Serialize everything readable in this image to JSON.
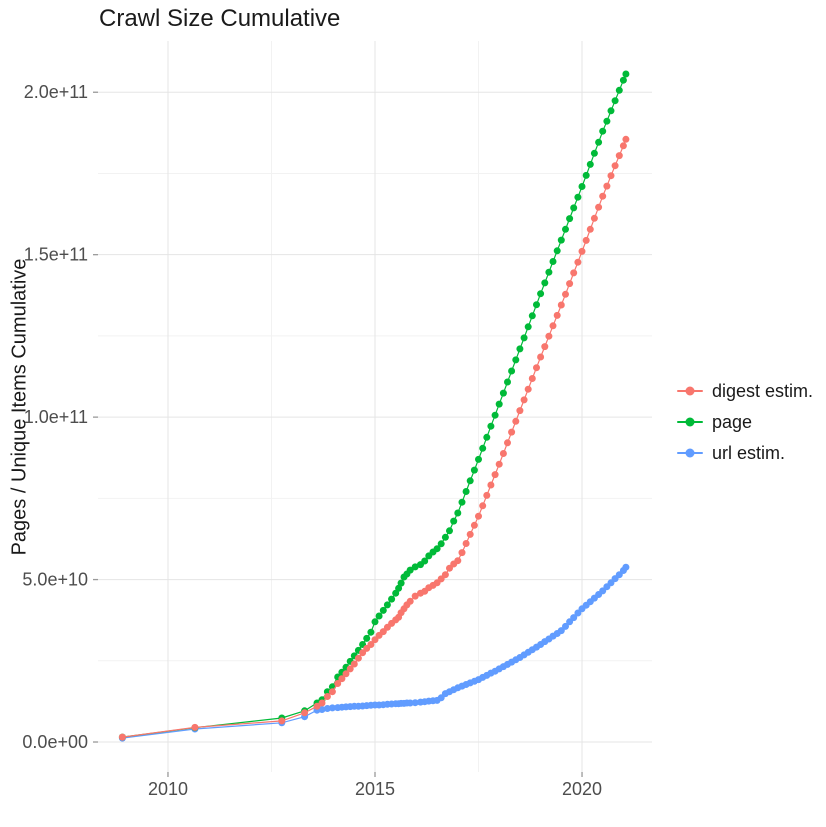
{
  "page": {
    "title": "Crawl Size Cumulative"
  },
  "chart_data": {
    "type": "scatter",
    "title": "Crawl Size Cumulative",
    "xlabel": "",
    "ylabel": "Pages / Unique Items Cumulative",
    "value_unit_note": "point values are in billions (1 = 1e9 items)",
    "x_domain": [
      2008.31,
      2021.69
    ],
    "y_domain_e9": [
      -9.23,
      215.77
    ],
    "x_ticks": [
      {
        "value": 2010,
        "label": "2010"
      },
      {
        "value": 2015,
        "label": "2015"
      },
      {
        "value": 2020,
        "label": "2020"
      }
    ],
    "y_ticks": [
      {
        "value_e9": 0,
        "label": "0.0e+00"
      },
      {
        "value_e9": 50,
        "label": "5.0e+10"
      },
      {
        "value_e9": 100,
        "label": "1.0e+11"
      },
      {
        "value_e9": 150,
        "label": "1.5e+11"
      },
      {
        "value_e9": 200,
        "label": "2.0e+11"
      }
    ],
    "x_minor_gridlines": [
      2012.5,
      2017.5
    ],
    "y_minor_gridlines_e9": [
      25,
      75,
      125,
      175
    ],
    "grid": true,
    "legend_position": "right",
    "colors": {
      "background": "#FFFFFF",
      "major_grid": "#E5E5E5",
      "minor_grid": "#F2F2F2",
      "tick_text": "#4D4D4D",
      "title_text": "#1A1A1A",
      "tick_mark": "#999999"
    },
    "marker": {
      "radius": 3.5,
      "line_width": 1.2
    },
    "series": [
      {
        "name": "digest estim.",
        "color": "#F8766D",
        "points": [
          [
            2008.9,
            1.5
          ],
          [
            2010.65,
            4.5
          ],
          [
            2012.75,
            6.5
          ],
          [
            2013.3,
            9.0
          ],
          [
            2013.6,
            11.0
          ],
          [
            2013.72,
            12.0
          ],
          [
            2013.85,
            14.0
          ],
          [
            2013.97,
            15.5
          ],
          [
            2014.1,
            18.0
          ],
          [
            2014.2,
            19.5
          ],
          [
            2014.3,
            21.0
          ],
          [
            2014.4,
            22.5
          ],
          [
            2014.5,
            24.0
          ],
          [
            2014.6,
            25.8
          ],
          [
            2014.7,
            27.5
          ],
          [
            2014.8,
            28.8
          ],
          [
            2014.9,
            30.0
          ],
          [
            2015.0,
            31.5
          ],
          [
            2015.1,
            32.8
          ],
          [
            2015.2,
            34.0
          ],
          [
            2015.3,
            35.3
          ],
          [
            2015.4,
            36.5
          ],
          [
            2015.5,
            37.6
          ],
          [
            2015.57,
            38.4
          ],
          [
            2015.63,
            39.8
          ],
          [
            2015.7,
            41.0
          ],
          [
            2015.77,
            42.2
          ],
          [
            2015.85,
            43.3
          ],
          [
            2015.97,
            44.9
          ],
          [
            2016.1,
            45.8
          ],
          [
            2016.2,
            46.4
          ],
          [
            2016.3,
            47.5
          ],
          [
            2016.4,
            48.2
          ],
          [
            2016.5,
            49.0
          ],
          [
            2016.6,
            50.2
          ],
          [
            2016.7,
            51.5
          ],
          [
            2016.8,
            53.5
          ],
          [
            2016.9,
            54.8
          ],
          [
            2017.0,
            55.8
          ],
          [
            2017.1,
            58.3
          ],
          [
            2017.2,
            61.1
          ],
          [
            2017.3,
            63.9
          ],
          [
            2017.4,
            66.7
          ],
          [
            2017.5,
            69.5
          ],
          [
            2017.6,
            72.7
          ],
          [
            2017.7,
            75.9
          ],
          [
            2017.8,
            79.1
          ],
          [
            2017.9,
            82.3
          ],
          [
            2018.0,
            85.5
          ],
          [
            2018.1,
            88.8
          ],
          [
            2018.2,
            92.1
          ],
          [
            2018.3,
            95.4
          ],
          [
            2018.4,
            98.7
          ],
          [
            2018.5,
            102.0
          ],
          [
            2018.6,
            105.3
          ],
          [
            2018.7,
            108.6
          ],
          [
            2018.8,
            111.9
          ],
          [
            2018.9,
            115.2
          ],
          [
            2019.0,
            118.5
          ],
          [
            2019.1,
            121.7
          ],
          [
            2019.2,
            124.9
          ],
          [
            2019.3,
            128.1
          ],
          [
            2019.4,
            131.3
          ],
          [
            2019.5,
            134.5
          ],
          [
            2019.6,
            137.8
          ],
          [
            2019.7,
            141.1
          ],
          [
            2019.8,
            144.4
          ],
          [
            2019.9,
            147.7
          ],
          [
            2020.0,
            151.0
          ],
          [
            2020.1,
            154.4
          ],
          [
            2020.2,
            157.8
          ],
          [
            2020.3,
            161.2
          ],
          [
            2020.4,
            164.6
          ],
          [
            2020.5,
            168.0
          ],
          [
            2020.6,
            171.1
          ],
          [
            2020.7,
            174.3
          ],
          [
            2020.8,
            177.4
          ],
          [
            2020.9,
            180.5
          ],
          [
            2021.0,
            183.5
          ],
          [
            2021.06,
            185.5
          ]
        ]
      },
      {
        "name": "page",
        "color": "#00BA38",
        "points": [
          [
            2008.9,
            1.5
          ],
          [
            2010.65,
            4.4
          ],
          [
            2012.75,
            7.4
          ],
          [
            2013.3,
            9.6
          ],
          [
            2013.6,
            12.0
          ],
          [
            2013.72,
            13.0
          ],
          [
            2013.85,
            15.5
          ],
          [
            2013.97,
            17.0
          ],
          [
            2014.1,
            20.0
          ],
          [
            2014.2,
            21.5
          ],
          [
            2014.3,
            23.0
          ],
          [
            2014.4,
            24.8
          ],
          [
            2014.5,
            26.5
          ],
          [
            2014.6,
            28.2
          ],
          [
            2014.7,
            30.0
          ],
          [
            2014.8,
            31.9
          ],
          [
            2014.9,
            33.8
          ],
          [
            2015.0,
            37.0
          ],
          [
            2015.1,
            38.8
          ],
          [
            2015.2,
            40.5
          ],
          [
            2015.3,
            42.2
          ],
          [
            2015.4,
            44.0
          ],
          [
            2015.5,
            45.8
          ],
          [
            2015.57,
            47.3
          ],
          [
            2015.63,
            48.9
          ],
          [
            2015.7,
            50.8
          ],
          [
            2015.77,
            51.7
          ],
          [
            2015.85,
            52.9
          ],
          [
            2015.97,
            53.9
          ],
          [
            2016.1,
            54.6
          ],
          [
            2016.2,
            55.7
          ],
          [
            2016.3,
            57.3
          ],
          [
            2016.4,
            58.5
          ],
          [
            2016.5,
            59.5
          ],
          [
            2016.6,
            61.0
          ],
          [
            2016.7,
            63.0
          ],
          [
            2016.8,
            65.0
          ],
          [
            2016.9,
            68.0
          ],
          [
            2017.0,
            70.5
          ],
          [
            2017.1,
            73.8
          ],
          [
            2017.2,
            77.1
          ],
          [
            2017.3,
            80.4
          ],
          [
            2017.4,
            83.7
          ],
          [
            2017.5,
            87.0
          ],
          [
            2017.6,
            90.4
          ],
          [
            2017.7,
            93.8
          ],
          [
            2017.8,
            97.2
          ],
          [
            2017.9,
            100.6
          ],
          [
            2018.0,
            104.0
          ],
          [
            2018.1,
            107.4
          ],
          [
            2018.2,
            110.8
          ],
          [
            2018.3,
            114.2
          ],
          [
            2018.4,
            117.6
          ],
          [
            2018.5,
            121.0
          ],
          [
            2018.6,
            124.4
          ],
          [
            2018.7,
            127.8
          ],
          [
            2018.8,
            131.2
          ],
          [
            2018.9,
            134.6
          ],
          [
            2019.0,
            138.0
          ],
          [
            2019.1,
            141.3
          ],
          [
            2019.2,
            144.6
          ],
          [
            2019.3,
            147.9
          ],
          [
            2019.4,
            151.2
          ],
          [
            2019.5,
            154.5
          ],
          [
            2019.6,
            157.8
          ],
          [
            2019.7,
            161.1
          ],
          [
            2019.8,
            164.4
          ],
          [
            2019.9,
            167.7
          ],
          [
            2020.0,
            171.0
          ],
          [
            2020.1,
            174.4
          ],
          [
            2020.2,
            177.8
          ],
          [
            2020.3,
            181.2
          ],
          [
            2020.4,
            184.6
          ],
          [
            2020.5,
            188.0
          ],
          [
            2020.6,
            191.1
          ],
          [
            2020.7,
            194.3
          ],
          [
            2020.8,
            197.4
          ],
          [
            2020.9,
            200.6
          ],
          [
            2021.0,
            203.7
          ],
          [
            2021.06,
            205.6
          ]
        ]
      },
      {
        "name": "url estim.",
        "color": "#619CFF",
        "points": [
          [
            2008.9,
            1.2
          ],
          [
            2010.65,
            4.0
          ],
          [
            2012.75,
            5.9
          ],
          [
            2013.3,
            7.8
          ],
          [
            2013.6,
            9.8
          ],
          [
            2013.72,
            10.0
          ],
          [
            2013.85,
            10.3
          ],
          [
            2013.97,
            10.5
          ],
          [
            2014.1,
            10.6
          ],
          [
            2014.2,
            10.7
          ],
          [
            2014.3,
            10.8
          ],
          [
            2014.4,
            10.9
          ],
          [
            2014.5,
            11.0
          ],
          [
            2014.6,
            11.0
          ],
          [
            2014.7,
            11.1
          ],
          [
            2014.8,
            11.2
          ],
          [
            2014.9,
            11.3
          ],
          [
            2015.0,
            11.4
          ],
          [
            2015.1,
            11.4
          ],
          [
            2015.2,
            11.5
          ],
          [
            2015.3,
            11.6
          ],
          [
            2015.4,
            11.7
          ],
          [
            2015.5,
            11.8
          ],
          [
            2015.57,
            11.8
          ],
          [
            2015.63,
            11.9
          ],
          [
            2015.7,
            11.9
          ],
          [
            2015.77,
            12.0
          ],
          [
            2015.85,
            12.0
          ],
          [
            2015.97,
            12.1
          ],
          [
            2016.1,
            12.3
          ],
          [
            2016.2,
            12.4
          ],
          [
            2016.3,
            12.6
          ],
          [
            2016.4,
            12.7
          ],
          [
            2016.5,
            12.8
          ],
          [
            2016.6,
            13.6
          ],
          [
            2016.7,
            14.9
          ],
          [
            2016.8,
            15.5
          ],
          [
            2016.9,
            16.1
          ],
          [
            2017.0,
            16.7
          ],
          [
            2017.1,
            17.2
          ],
          [
            2017.2,
            17.7
          ],
          [
            2017.3,
            18.2
          ],
          [
            2017.4,
            18.7
          ],
          [
            2017.5,
            19.2
          ],
          [
            2017.6,
            19.9
          ],
          [
            2017.7,
            20.5
          ],
          [
            2017.8,
            21.2
          ],
          [
            2017.9,
            21.8
          ],
          [
            2018.0,
            22.5
          ],
          [
            2018.1,
            23.2
          ],
          [
            2018.2,
            23.9
          ],
          [
            2018.3,
            24.6
          ],
          [
            2018.4,
            25.3
          ],
          [
            2018.5,
            26.0
          ],
          [
            2018.6,
            26.8
          ],
          [
            2018.7,
            27.6
          ],
          [
            2018.8,
            28.4
          ],
          [
            2018.9,
            29.2
          ],
          [
            2019.0,
            30.0
          ],
          [
            2019.1,
            30.9
          ],
          [
            2019.2,
            31.7
          ],
          [
            2019.3,
            32.6
          ],
          [
            2019.4,
            33.4
          ],
          [
            2019.5,
            34.3
          ],
          [
            2019.6,
            35.6
          ],
          [
            2019.7,
            37.0
          ],
          [
            2019.8,
            38.3
          ],
          [
            2019.9,
            39.7
          ],
          [
            2020.0,
            41.0
          ],
          [
            2020.1,
            42.1
          ],
          [
            2020.2,
            43.2
          ],
          [
            2020.3,
            44.3
          ],
          [
            2020.4,
            45.4
          ],
          [
            2020.5,
            46.5
          ],
          [
            2020.6,
            47.8
          ],
          [
            2020.7,
            49.0
          ],
          [
            2020.8,
            50.3
          ],
          [
            2020.9,
            51.5
          ],
          [
            2021.0,
            52.8
          ],
          [
            2021.06,
            53.8
          ]
        ]
      }
    ]
  }
}
